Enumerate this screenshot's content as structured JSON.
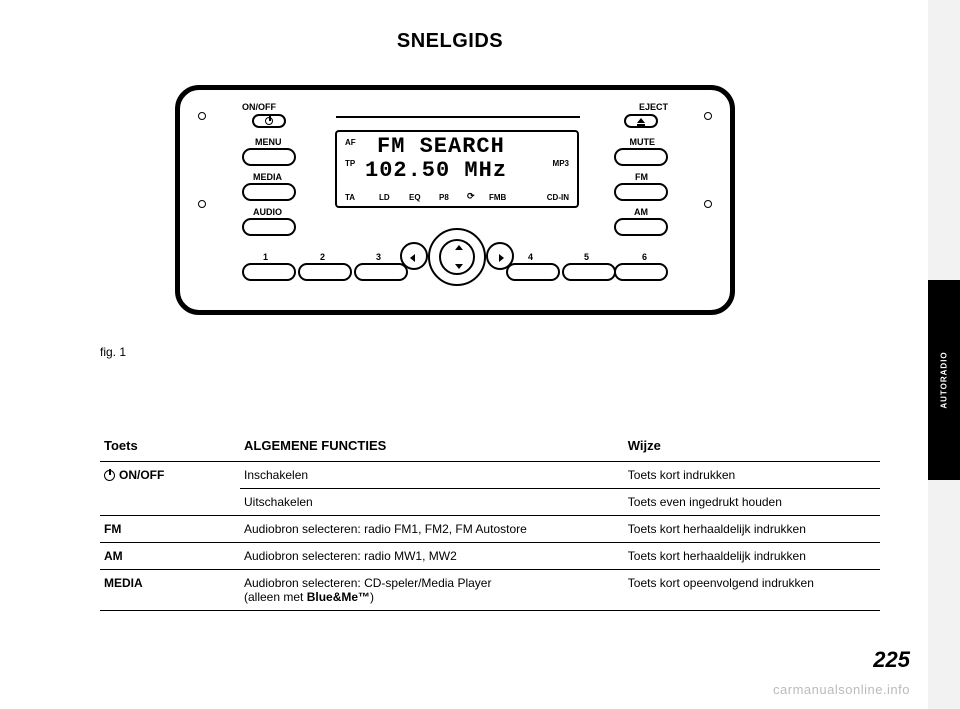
{
  "title": "SNELGIDS",
  "figure_label": "fig. 1",
  "page_number": "225",
  "watermark": "carmanualsonline.info",
  "side_tab": "AUTORADIO",
  "radio": {
    "labels": {
      "onoff": "ON/OFF",
      "menu": "MENU",
      "media": "MEDIA",
      "audio": "AUDIO",
      "eject": "EJECT",
      "mute": "MUTE",
      "fm": "FM",
      "am": "AM"
    },
    "presets": [
      "1",
      "2",
      "3",
      "4",
      "5",
      "6"
    ],
    "display": {
      "line1": "FM SEARCH",
      "line2": "102.50 MHz",
      "af": "AF",
      "tp": "TP",
      "mp3": "MP3",
      "bottom": [
        "TA",
        "LD",
        "EQ",
        "P8",
        "FMB",
        "CD-IN"
      ]
    }
  },
  "table": {
    "headers": [
      "Toets",
      "ALGEMENE FUNCTIES",
      "Wijze"
    ],
    "rows": [
      {
        "key_power": true,
        "key": "ON/OFF",
        "func": "Inschakelen",
        "mode": "Toets kort indrukken",
        "rowspan": 2
      },
      {
        "key": "",
        "func": "Uitschakelen",
        "mode": "Toets even ingedrukt houden"
      },
      {
        "key": "FM",
        "func": "Audiobron selecteren: radio FM1, FM2, FM Autostore",
        "mode": "Toets kort herhaaldelijk indrukken"
      },
      {
        "key": "AM",
        "func": "Audiobron selecteren: radio MW1, MW2",
        "mode": "Toets kort herhaaldelijk indrukken"
      },
      {
        "key": "MEDIA",
        "func_html": "Audiobron selecteren: CD-speler/Media Player<br>(alleen met <b>Blue&amp;Me™</b>)",
        "mode": "Toets kort opeenvolgend indrukken"
      }
    ]
  }
}
